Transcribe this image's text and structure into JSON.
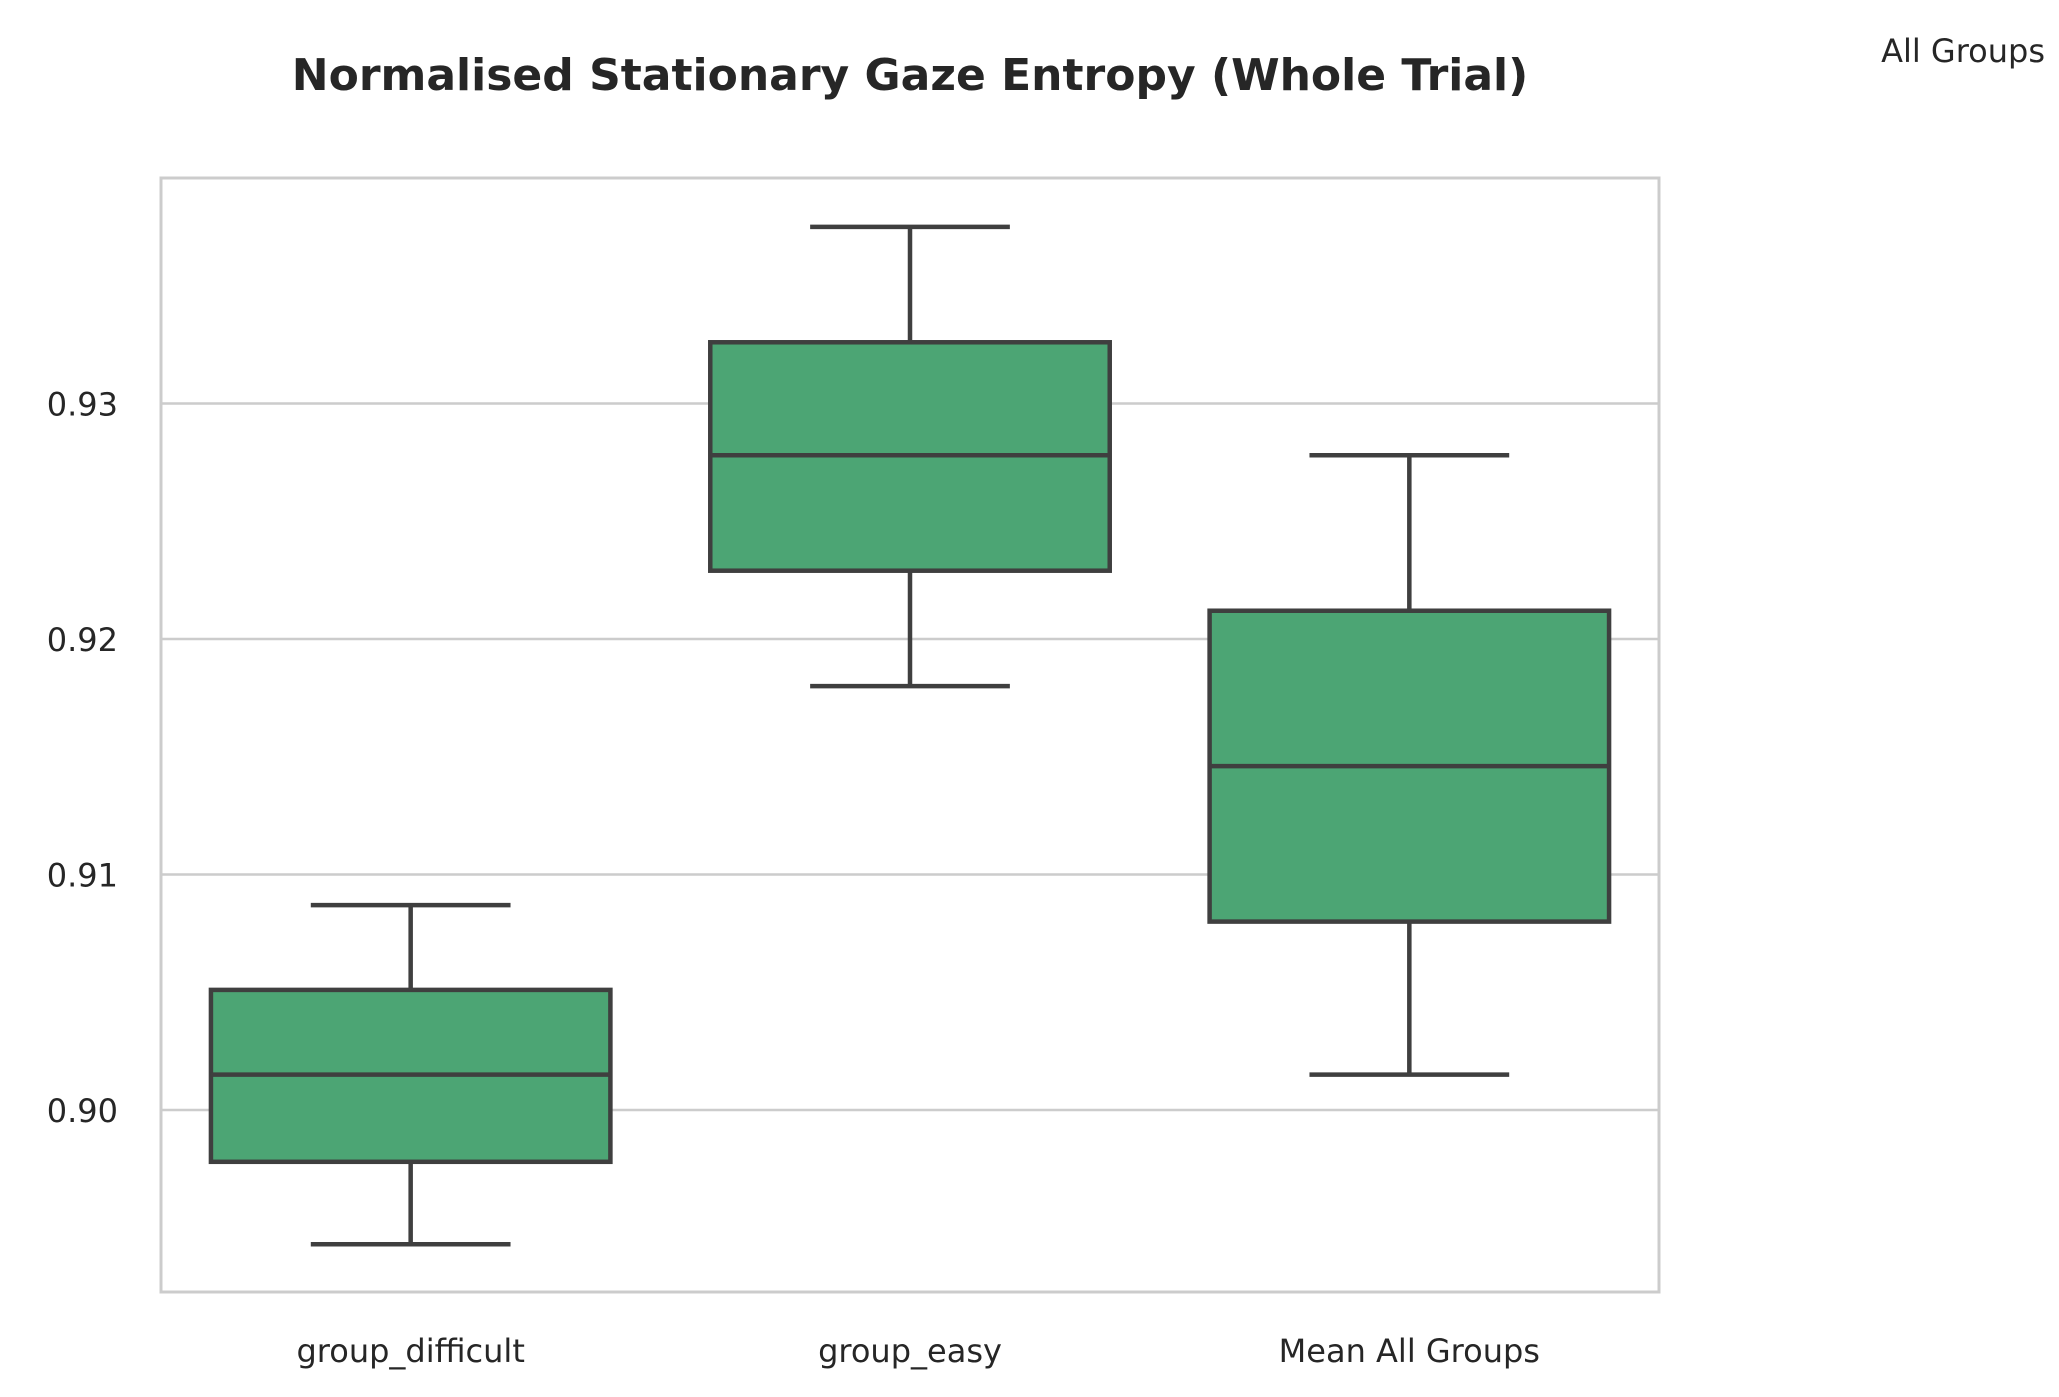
{
  "chart_data": {
    "type": "box",
    "title": "Normalised Stationary Gaze Entropy (Whole Trial)",
    "legend_title": "All Groups",
    "legend_placement": "top-right",
    "xlabel": "",
    "ylabel": "",
    "ylim": [
      0.8943,
      0.9419
    ],
    "yticks": [
      0.9,
      0.91,
      0.92,
      0.93
    ],
    "ytick_labels": [
      "0.90",
      "0.91",
      "0.92",
      "0.93"
    ],
    "grid": true,
    "color": "#4ca574",
    "categories": [
      "group_difficult",
      "group_easy",
      "Mean All Groups"
    ],
    "boxes": [
      {
        "category": "group_difficult",
        "whisker_low": 0.8943,
        "q1": 0.8978,
        "median": 0.9015,
        "q3": 0.9051,
        "whisker_high": 0.9087
      },
      {
        "category": "group_easy",
        "whisker_low": 0.918,
        "q1": 0.9229,
        "median": 0.9278,
        "q3": 0.9326,
        "whisker_high": 0.9375
      },
      {
        "category": "Mean All Groups",
        "whisker_low": 0.9015,
        "q1": 0.908,
        "median": 0.9146,
        "q3": 0.9212,
        "whisker_high": 0.9278
      }
    ]
  }
}
